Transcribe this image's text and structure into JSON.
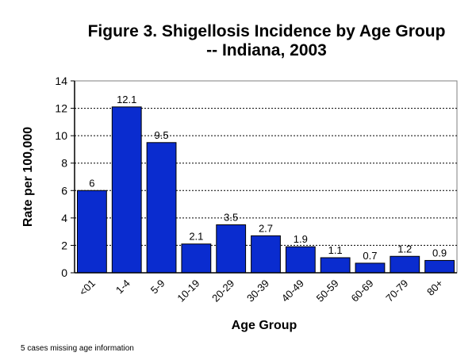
{
  "chart_data": {
    "type": "bar",
    "title": [
      "Figure 3. Shigellosis Incidence by Age Group",
      "-- Indiana, 2003"
    ],
    "xlabel": "Age Group",
    "ylabel": "Rate per 100,000",
    "categories": [
      "<01",
      "1-4",
      "5-9",
      "10-19",
      "20-29",
      "30-39",
      "40-49",
      "50-59",
      "60-69",
      "70-79",
      "80+"
    ],
    "values": [
      6,
      12.1,
      9.5,
      2.1,
      3.5,
      2.7,
      1.9,
      1.1,
      0.7,
      1.2,
      0.9
    ],
    "data_labels": [
      "6",
      "12.1",
      "9.5",
      "2.1",
      "3.5",
      "2.7",
      "1.9",
      "1.1",
      "0.7",
      "1.2",
      "0.9"
    ],
    "ylim": [
      0,
      14
    ],
    "yticks": [
      0,
      2,
      4,
      6,
      8,
      10,
      12,
      14
    ],
    "grid": "horizontal dashed",
    "bar_color": "#0a2ccf",
    "bar_edge_color": "#000000"
  },
  "footnote": "5 cases missing age information"
}
